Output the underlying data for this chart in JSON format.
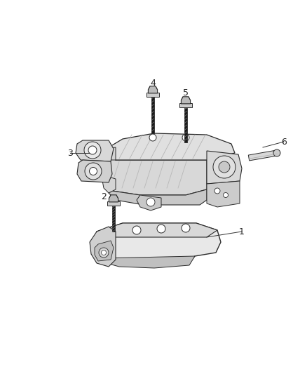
{
  "bg_color": "#ffffff",
  "line_color": "#2a2a2a",
  "gray_light": "#e8e8e8",
  "gray_mid": "#d0d0d0",
  "gray_dark": "#b0b0b0",
  "label_fontsize": 9,
  "fig_width": 4.38,
  "fig_height": 5.33
}
